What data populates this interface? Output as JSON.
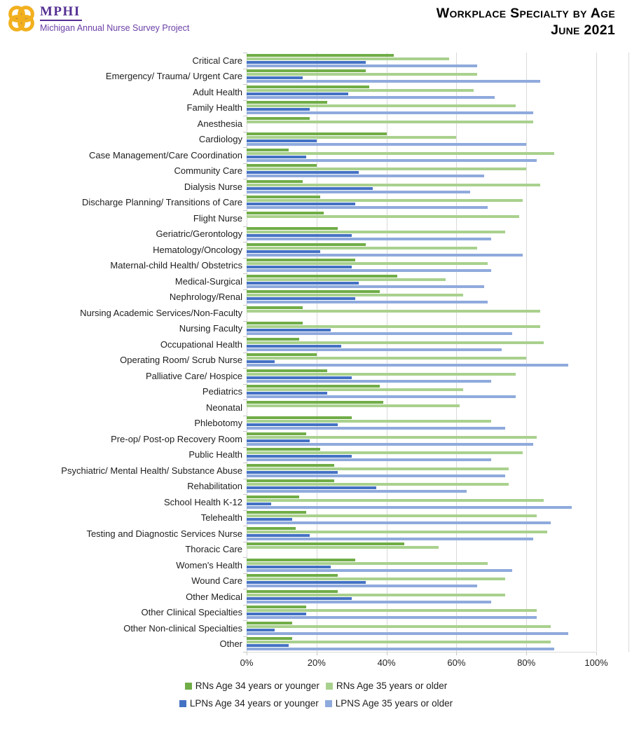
{
  "header": {
    "logo": {
      "acronym": "MPHI",
      "subtitle": "Michigan Annual Nurse Survey Project",
      "icon": "mphi-knot-icon",
      "gold": "#F2B01E",
      "purple": "#543092"
    },
    "title_line1": "Workplace Specialty by Age",
    "title_line2": "June 2021"
  },
  "chart_data": {
    "type": "bar",
    "orientation": "horizontal",
    "title": "Workplace Specialty by Age June 2021",
    "xlabel": "",
    "ylabel": "",
    "xlim": [
      0,
      100
    ],
    "x_ticks": [
      "0%",
      "20%",
      "40%",
      "60%",
      "80%",
      "100%"
    ],
    "x_tick_values": [
      0,
      20,
      40,
      60,
      80,
      100
    ],
    "grid": true,
    "grid_color": "#D9D9D9",
    "legend_position": "bottom",
    "categories": [
      "Critical Care",
      "Emergency/ Trauma/ Urgent Care",
      "Adult Health",
      "Family Health",
      "Anesthesia",
      "Cardiology",
      "Case Management/Care Coordination",
      "Community Care",
      "Dialysis Nurse",
      "Discharge Planning/ Transitions of Care",
      "Flight Nurse",
      "Geriatric/Gerontology",
      "Hematology/Oncology",
      "Maternal-child Health/ Obstetrics",
      "Medical-Surgical",
      "Nephrology/Renal",
      "Nursing Academic Services/Non-Faculty",
      "Nursing Faculty",
      "Occupational Health",
      "Operating Room/ Scrub Nurse",
      "Palliative Care/ Hospice",
      "Pediatrics",
      "Neonatal",
      "Phlebotomy",
      "Pre-op/ Post-op Recovery Room",
      "Public Health",
      "Psychiatric/ Mental Health/ Substance Abuse",
      "Rehabilitation",
      "School Health K-12",
      "Telehealth",
      "Testing and Diagnostic Services Nurse",
      "Thoracic Care",
      "Women's Health",
      "Wound Care",
      "Other Medical",
      "Other Clinical Specialties",
      "Other Non-clinical Specialties",
      "Other"
    ],
    "series": [
      {
        "name": "RNs Age 34 years or younger",
        "color": "#70AD47",
        "values": [
          42,
          34,
          35,
          23,
          18,
          40,
          12,
          20,
          16,
          21,
          22,
          26,
          34,
          31,
          43,
          38,
          16,
          16,
          15,
          20,
          23,
          38,
          39,
          30,
          17,
          21,
          25,
          25,
          15,
          17,
          14,
          45,
          31,
          26,
          26,
          17,
          13,
          13
        ]
      },
      {
        "name": "RNs Age 35 years or older",
        "color": "#A9D18E",
        "values": [
          58,
          66,
          65,
          77,
          82,
          60,
          88,
          80,
          84,
          79,
          78,
          74,
          66,
          69,
          57,
          62,
          84,
          84,
          85,
          80,
          77,
          62,
          61,
          70,
          83,
          79,
          75,
          75,
          85,
          83,
          86,
          55,
          69,
          74,
          74,
          83,
          87,
          87
        ]
      },
      {
        "name": "LPNs Age 34 years or younger",
        "color": "#4472C4",
        "values": [
          34,
          16,
          29,
          18,
          0,
          20,
          17,
          32,
          36,
          31,
          0,
          30,
          21,
          30,
          32,
          31,
          0,
          24,
          27,
          8,
          30,
          23,
          0,
          26,
          18,
          30,
          26,
          37,
          7,
          13,
          18,
          0,
          24,
          34,
          30,
          17,
          8,
          12
        ]
      },
      {
        "name": "LPNS Age 35 years or older",
        "color": "#8FAADC",
        "values": [
          66,
          84,
          71,
          82,
          0,
          80,
          83,
          68,
          64,
          69,
          0,
          70,
          79,
          70,
          68,
          69,
          0,
          76,
          73,
          92,
          70,
          77,
          0,
          74,
          82,
          70,
          74,
          63,
          93,
          87,
          82,
          0,
          76,
          66,
          70,
          83,
          92,
          88
        ]
      }
    ]
  }
}
